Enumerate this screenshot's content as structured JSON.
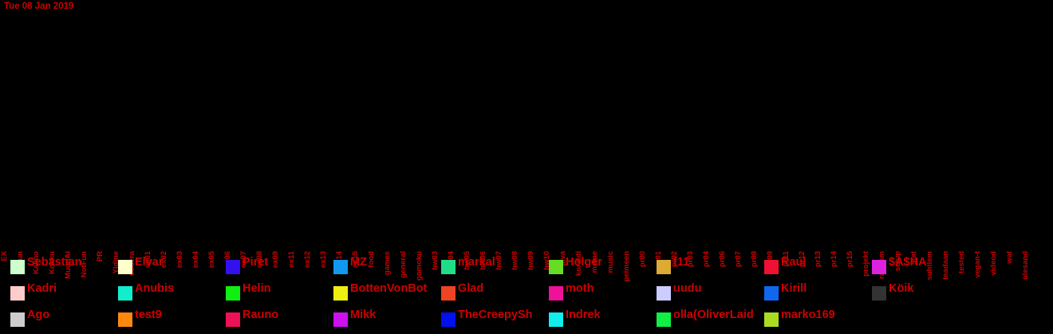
{
  "chart_data": {
    "type": "bar",
    "title": "Tue 08 Jan 2019",
    "categories": [
      "EX",
      "Fun",
      "Kalmo",
      "Kokku",
      "MuudAi",
      "NotFun",
      "PR",
      "Yldine",
      "codera",
      "ex01",
      "ex02",
      "ex03",
      "ex04",
      "ex05",
      "ex06",
      "ex07",
      "ex08",
      "ex09",
      "ex11",
      "ex12",
      "ex13",
      "ex14",
      "ex15",
      "food",
      "games",
      "general",
      "gomoku",
      "hw03",
      "hw04",
      "hw05",
      "hw06",
      "hw07",
      "hw08",
      "hw09",
      "hw10",
      "java",
      "koraldi",
      "meme",
      "music",
      "pelmeen",
      "pr00",
      "pr01",
      "pr02",
      "pr03",
      "pr04",
      "pr06",
      "pr07",
      "pr08",
      "pr09",
      "pr11",
      "pr12",
      "pr13",
      "pr14",
      "pr15",
      "projekt",
      "random",
      "setup",
      "stat",
      "suhtlem",
      "teadaan",
      "tested",
      "vegan-t",
      "videod",
      "wat",
      "ülesand"
    ],
    "series": [
      {
        "name": "Sebastian",
        "color": "#ccffcc"
      },
      {
        "name": "Elvar",
        "color": "#ffffcc"
      },
      {
        "name": "Piret",
        "color": "#3311ee"
      },
      {
        "name": "MZ",
        "color": "#1199ee"
      },
      {
        "name": "markal",
        "color": "#22dd88"
      },
      {
        "name": "Holger",
        "color": "#66dd22"
      },
      {
        "name": "f11",
        "color": "#ddaa33"
      },
      {
        "name": "Raul",
        "color": "#ee1133"
      },
      {
        "name": "$A$HA",
        "color": "#dd22dd"
      },
      {
        "name": "Kadri",
        "color": "#ffcccc"
      },
      {
        "name": "Anubis",
        "color": "#11eecc"
      },
      {
        "name": "Helin",
        "color": "#11ee11"
      },
      {
        "name": "BottenVonBot",
        "color": "#eeee11"
      },
      {
        "name": "Glad",
        "color": "#ee4422"
      },
      {
        "name": "moth",
        "color": "#ee1199"
      },
      {
        "name": "uudu",
        "color": "#ccccff"
      },
      {
        "name": "Kirill",
        "color": "#1166ee"
      },
      {
        "name": "Köik",
        "color": "#333333"
      },
      {
        "name": "Ago",
        "color": "#cccccc"
      },
      {
        "name": "test9",
        "color": "#ff8811"
      },
      {
        "name": "Rauno",
        "color": "#ee1155"
      },
      {
        "name": "Mikk",
        "color": "#cc11ee"
      },
      {
        "name": "TheCreepySh",
        "color": "#0011ee"
      },
      {
        "name": "Indrek",
        "color": "#11eeee"
      },
      {
        "name": "olla(OliverLaid",
        "color": "#11ee44"
      },
      {
        "name": "marko169",
        "color": "#aadd22"
      }
    ]
  }
}
